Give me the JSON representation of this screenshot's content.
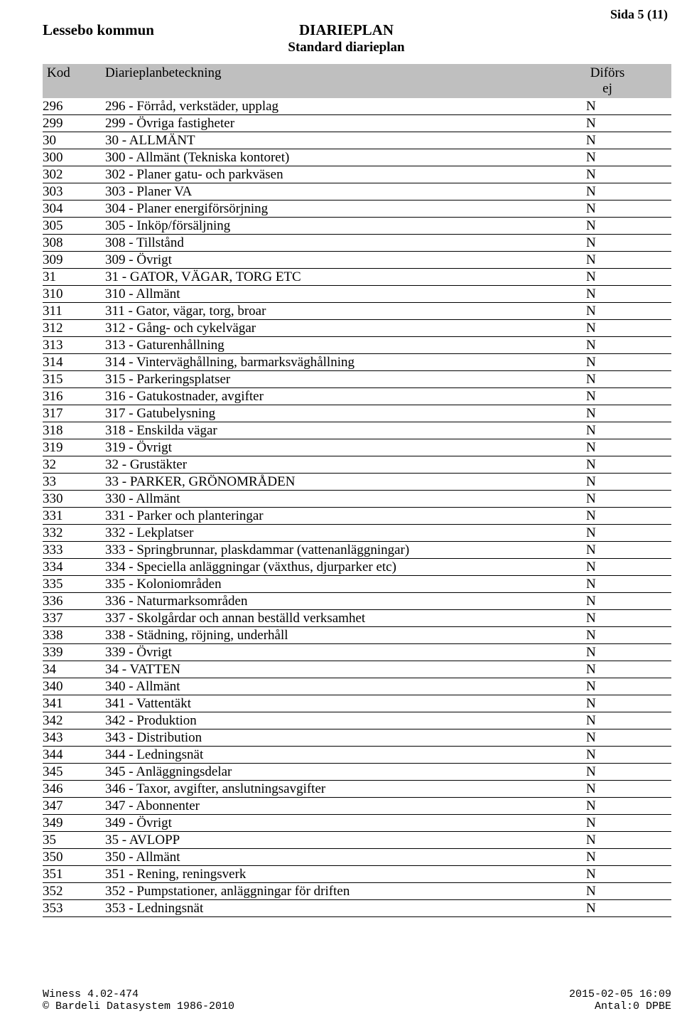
{
  "header": {
    "organisation": "Lessebo kommun",
    "title": "DIARIEPLAN",
    "subtitle": "Standard diarieplan",
    "page_label": "Sida 5 (11)"
  },
  "columns": {
    "kod": "Kod",
    "beteckning": "Diarieplanbeteckning",
    "difors": "Diförs",
    "ej": "ej"
  },
  "rows": [
    {
      "kod": "296",
      "bet": "296 - Förråd, verkstäder, upplag",
      "dif": "N"
    },
    {
      "kod": "299",
      "bet": "299 - Övriga fastigheter",
      "dif": "N"
    },
    {
      "kod": "30",
      "bet": "30 - ALLMÄNT",
      "dif": "N"
    },
    {
      "kod": "300",
      "bet": "300 - Allmänt (Tekniska kontoret)",
      "dif": "N"
    },
    {
      "kod": "302",
      "bet": "302 - Planer gatu- och parkväsen",
      "dif": "N"
    },
    {
      "kod": "303",
      "bet": "303 - Planer VA",
      "dif": "N"
    },
    {
      "kod": "304",
      "bet": "304 - Planer energiförsörjning",
      "dif": "N"
    },
    {
      "kod": "305",
      "bet": "305 - Inköp/försäljning",
      "dif": "N"
    },
    {
      "kod": "308",
      "bet": "308 - Tillstånd",
      "dif": "N"
    },
    {
      "kod": "309",
      "bet": "309 - Övrigt",
      "dif": "N"
    },
    {
      "kod": "31",
      "bet": "31 - GATOR, VÄGAR, TORG ETC",
      "dif": "N"
    },
    {
      "kod": "310",
      "bet": "310 - Allmänt",
      "dif": "N"
    },
    {
      "kod": "311",
      "bet": "311 - Gator, vägar, torg, broar",
      "dif": "N"
    },
    {
      "kod": "312",
      "bet": "312 - Gång- och cykelvägar",
      "dif": "N"
    },
    {
      "kod": "313",
      "bet": "313 - Gaturenhållning",
      "dif": "N"
    },
    {
      "kod": "314",
      "bet": "314 - Vinterväghållning, barmarksväghållning",
      "dif": "N"
    },
    {
      "kod": "315",
      "bet": "315 - Parkeringsplatser",
      "dif": "N"
    },
    {
      "kod": "316",
      "bet": "316 - Gatukostnader, avgifter",
      "dif": "N"
    },
    {
      "kod": "317",
      "bet": "317 - Gatubelysning",
      "dif": "N"
    },
    {
      "kod": "318",
      "bet": "318 - Enskilda vägar",
      "dif": "N"
    },
    {
      "kod": "319",
      "bet": "319 - Övrigt",
      "dif": "N"
    },
    {
      "kod": "32",
      "bet": "32 - Grustäkter",
      "dif": "N"
    },
    {
      "kod": "33",
      "bet": "33 - PARKER, GRÖNOMRÅDEN",
      "dif": "N"
    },
    {
      "kod": "330",
      "bet": "330 - Allmänt",
      "dif": "N"
    },
    {
      "kod": "331",
      "bet": "331 - Parker och planteringar",
      "dif": "N"
    },
    {
      "kod": "332",
      "bet": "332 - Lekplatser",
      "dif": "N"
    },
    {
      "kod": "333",
      "bet": "333 - Springbrunnar, plaskdammar (vattenanläggningar)",
      "dif": "N"
    },
    {
      "kod": "334",
      "bet": "334 - Speciella anläggningar (växthus, djurparker etc)",
      "dif": "N"
    },
    {
      "kod": "335",
      "bet": "335 - Koloniområden",
      "dif": "N"
    },
    {
      "kod": "336",
      "bet": "336 - Naturmarksområden",
      "dif": "N"
    },
    {
      "kod": "337",
      "bet": "337 - Skolgårdar och annan beställd verksamhet",
      "dif": "N"
    },
    {
      "kod": "338",
      "bet": "338 - Städning, röjning, underhåll",
      "dif": "N"
    },
    {
      "kod": "339",
      "bet": "339 - Övrigt",
      "dif": "N"
    },
    {
      "kod": "34",
      "bet": "34 - VATTEN",
      "dif": "N"
    },
    {
      "kod": "340",
      "bet": "340 - Allmänt",
      "dif": "N"
    },
    {
      "kod": "341",
      "bet": "341 - Vattentäkt",
      "dif": "N"
    },
    {
      "kod": "342",
      "bet": "342 - Produktion",
      "dif": "N"
    },
    {
      "kod": "343",
      "bet": "343 - Distribution",
      "dif": "N"
    },
    {
      "kod": "344",
      "bet": "344 - Ledningsnät",
      "dif": "N"
    },
    {
      "kod": "345",
      "bet": "345 - Anläggningsdelar",
      "dif": "N"
    },
    {
      "kod": "346",
      "bet": "346 - Taxor, avgifter, anslutningsavgifter",
      "dif": "N"
    },
    {
      "kod": "347",
      "bet": "347 - Abonnenter",
      "dif": "N"
    },
    {
      "kod": "349",
      "bet": "349 - Övrigt",
      "dif": "N"
    },
    {
      "kod": "35",
      "bet": "35 - AVLOPP",
      "dif": "N"
    },
    {
      "kod": "350",
      "bet": "350 - Allmänt",
      "dif": "N"
    },
    {
      "kod": "351",
      "bet": "351 - Rening, reningsverk",
      "dif": "N"
    },
    {
      "kod": "352",
      "bet": "352 - Pumpstationer, anläggningar för driften",
      "dif": "N"
    },
    {
      "kod": "353",
      "bet": "353 - Ledningsnät",
      "dif": "N"
    }
  ],
  "footer": {
    "line1_left": "Winess 4.02-474",
    "line1_right": "2015-02-05  16:09",
    "line2_left": "© Bardeli Datasystem 1986-2010",
    "line2_right": "Antal:0   DPBE"
  }
}
